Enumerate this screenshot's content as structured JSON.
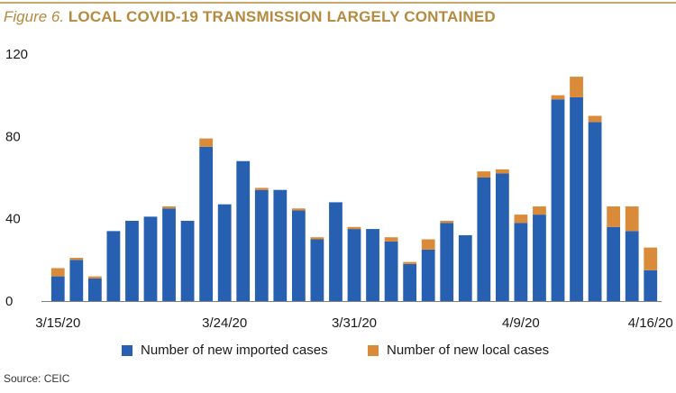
{
  "figure": {
    "label": "Figure 6.",
    "title": "LOCAL COVID-19 TRANSMISSION LARGELY CONTAINED"
  },
  "source": "Source: CEIC",
  "colors": {
    "imported": "#2760b0",
    "local": "#d98b3a",
    "title": "#b58a3e",
    "rule": "#c9a76b"
  },
  "chart_data": {
    "type": "bar",
    "stacked": true,
    "title": "LOCAL COVID-19 TRANSMISSION LARGELY CONTAINED",
    "xlabel": "",
    "ylabel": "",
    "ylim": [
      0,
      120
    ],
    "yticks": [
      0,
      40,
      80,
      120
    ],
    "grid": false,
    "legend_position": "bottom",
    "categories": [
      "3/15/20",
      "3/16/20",
      "3/17/20",
      "3/18/20",
      "3/19/20",
      "3/20/20",
      "3/21/20",
      "3/22/20",
      "3/23/20",
      "3/24/20",
      "3/25/20",
      "3/26/20",
      "3/27/20",
      "3/28/20",
      "3/29/20",
      "3/30/20",
      "3/31/20",
      "4/1/20",
      "4/2/20",
      "4/3/20",
      "4/4/20",
      "4/5/20",
      "4/6/20",
      "4/7/20",
      "4/8/20",
      "4/9/20",
      "4/10/20",
      "4/11/20",
      "4/12/20",
      "4/13/20",
      "4/14/20",
      "4/15/20",
      "4/16/20"
    ],
    "xtick_labels": [
      {
        "index": 0,
        "label": "3/15/20"
      },
      {
        "index": 9,
        "label": "3/24/20"
      },
      {
        "index": 16,
        "label": "3/31/20"
      },
      {
        "index": 25,
        "label": "4/9/20"
      },
      {
        "index": 32,
        "label": "4/16/20"
      }
    ],
    "series": [
      {
        "name": "Number of new imported cases",
        "color": "#2760b0",
        "values": [
          12,
          20,
          11,
          34,
          39,
          41,
          45,
          39,
          75,
          47,
          68,
          54,
          54,
          44,
          30,
          48,
          35,
          35,
          29,
          18,
          25,
          38,
          32,
          60,
          62,
          38,
          42,
          98,
          99,
          87,
          36,
          34,
          15
        ]
      },
      {
        "name": "Number of new local cases",
        "color": "#d98b3a",
        "values": [
          4,
          1,
          1,
          0,
          0,
          0,
          1,
          0,
          4,
          0,
          0,
          1,
          0,
          1,
          1,
          0,
          1,
          0,
          2,
          1,
          5,
          1,
          0,
          3,
          2,
          4,
          4,
          2,
          10,
          3,
          10,
          12,
          11
        ]
      }
    ]
  }
}
